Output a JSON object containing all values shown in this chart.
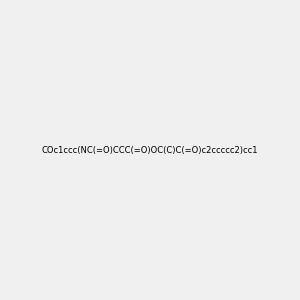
{
  "smiles": "COc1ccc(NC(=O)CCC(=O)OC(C)C(=O)c2ccccc2)cc1",
  "title": "",
  "background_color": "#f0f0f0",
  "bond_color": "#4a7c6f",
  "oxygen_color": "#ff2200",
  "nitrogen_color": "#2222ff",
  "carbon_color": "#4a7c6f",
  "hydrogen_color": "#4a7c6f",
  "figsize": [
    3.0,
    3.0
  ],
  "dpi": 100
}
